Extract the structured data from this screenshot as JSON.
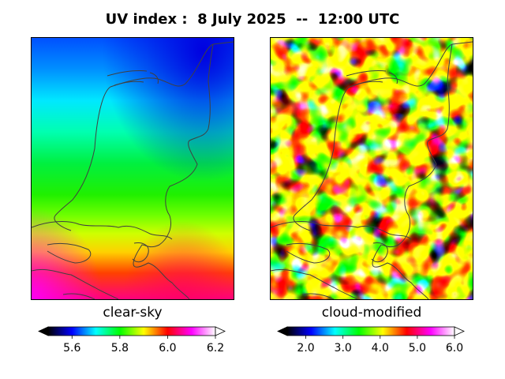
{
  "title": "UV index :  8 July 2025  --  12:00 UTC",
  "panels": [
    {
      "label": "clear-sky",
      "colorbar": {
        "min": 5.5,
        "max": 6.2,
        "ticks": [
          "5.6",
          "5.8",
          "6.0",
          "6.2"
        ],
        "tick_values": [
          5.6,
          5.8,
          6.0,
          6.2
        ],
        "extend": "both"
      }
    },
    {
      "label": "cloud-modified",
      "colorbar": {
        "min": 1.5,
        "max": 6.0,
        "ticks": [
          "2.0",
          "3.0",
          "4.0",
          "5.0",
          "6.0"
        ],
        "tick_values": [
          2.0,
          3.0,
          4.0,
          5.0,
          6.0
        ],
        "extend": "both"
      }
    }
  ],
  "colormap": [
    "#000000",
    "#0000ff",
    "#00ffff",
    "#00ff00",
    "#ffff00",
    "#ff0000",
    "#ff00ff",
    "#ffffff"
  ],
  "boundary_color": "#404040"
}
